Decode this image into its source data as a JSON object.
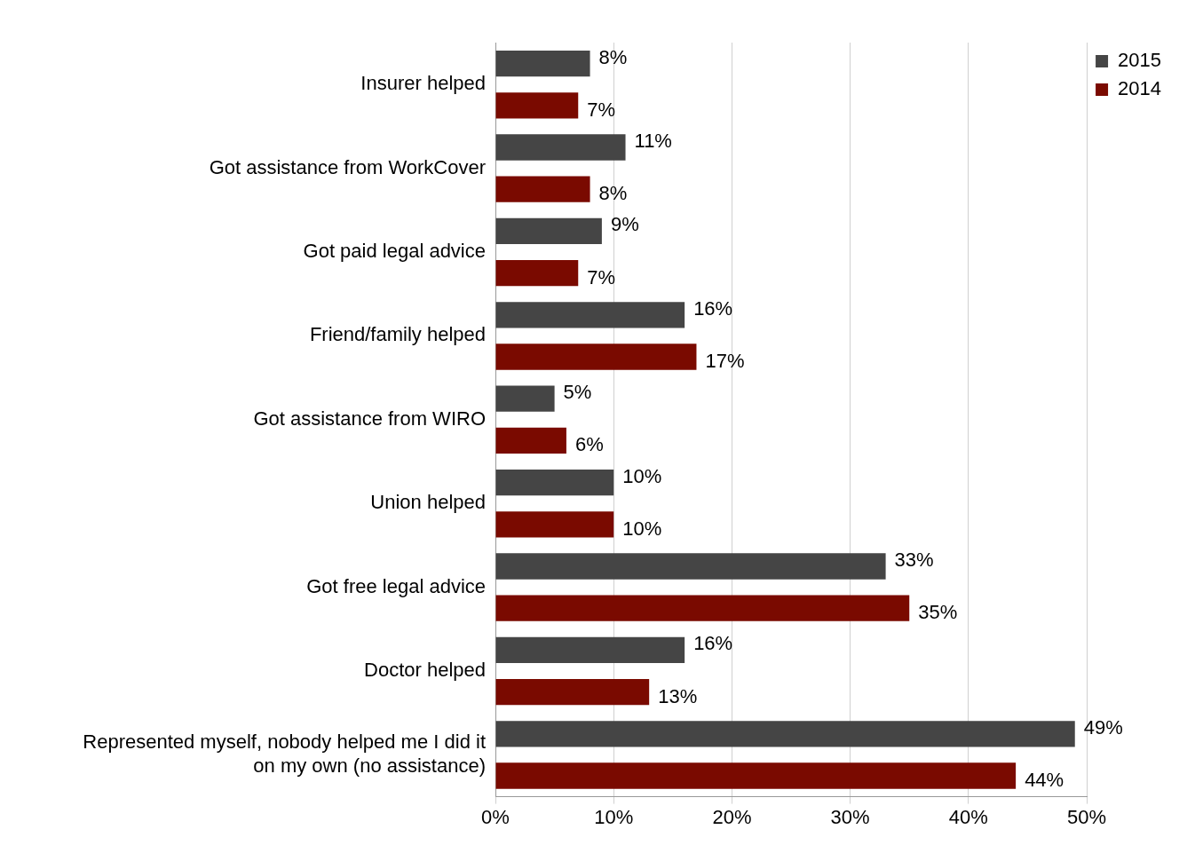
{
  "chart_data": {
    "type": "bar",
    "orientation": "horizontal",
    "categories": [
      "Insurer helped",
      "Got assistance from WorkCover",
      "Got paid legal advice",
      "Friend/family helped",
      "Got assistance from WIRO",
      "Union helped",
      "Got free legal advice",
      "Doctor helped",
      "Represented myself, nobody helped me I did it on my own (no assistance)"
    ],
    "series": [
      {
        "name": "2015",
        "color": "#454545",
        "values": [
          8,
          11,
          9,
          16,
          5,
          10,
          33,
          16,
          49
        ],
        "value_labels": [
          "8%",
          "11%",
          "9%",
          "16%",
          "5%",
          "10%",
          "33%",
          "16%",
          "49%"
        ]
      },
      {
        "name": "2014",
        "color": "#7a0a00",
        "values": [
          7,
          8,
          7,
          17,
          6,
          10,
          35,
          13,
          44
        ],
        "value_labels": [
          "7%",
          "8%",
          "7%",
          "17%",
          "6%",
          "10%",
          "35%",
          "13%",
          "44%"
        ]
      }
    ],
    "xlim": [
      0,
      50
    ],
    "xticks": [
      {
        "value": 0,
        "label": "0%"
      },
      {
        "value": 10,
        "label": "10%"
      },
      {
        "value": 20,
        "label": "20%"
      },
      {
        "value": 30,
        "label": "30%"
      },
      {
        "value": 40,
        "label": "40%"
      },
      {
        "value": 50,
        "label": "50%"
      }
    ],
    "grid": "x",
    "legend": "top right"
  }
}
